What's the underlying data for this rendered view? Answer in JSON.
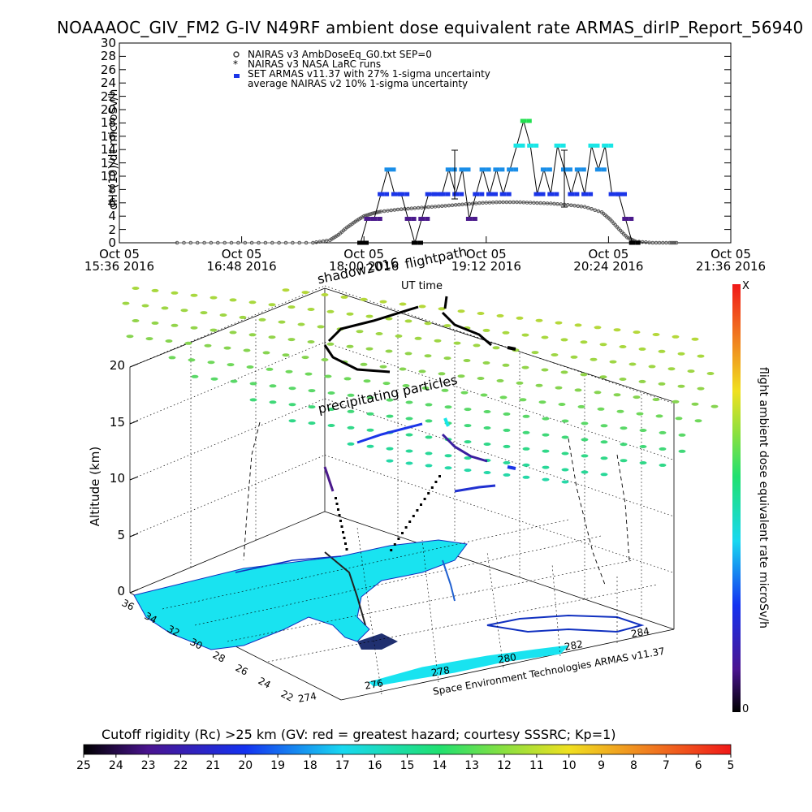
{
  "title": "NOAAAOC_GIV_FM2 G-IV   N49RF  ambient dose equivalent rate ARMAS_dirIP_Report_56940",
  "top_chart": {
    "ylabel": "dH*(10)/dt microSv/h",
    "xlabel": "UT time",
    "y_ticks": [
      "0",
      "2",
      "4",
      "6",
      "8",
      "10",
      "12",
      "14",
      "16",
      "18",
      "20",
      "22",
      "24",
      "26",
      "28",
      "30"
    ],
    "x_ticks": [
      {
        "date": "Oct 05",
        "time": "15:36 2016"
      },
      {
        "date": "Oct 05",
        "time": "16:48 2016"
      },
      {
        "date": "Oct 05",
        "time": "18:00 2016"
      },
      {
        "date": "Oct 05",
        "time": "19:12 2016"
      },
      {
        "date": "Oct 05",
        "time": "20:24 2016"
      },
      {
        "date": "Oct 05",
        "time": "21:36 2016"
      }
    ],
    "legend": [
      {
        "symbol": "⊛",
        "label": "NAIRAS v3 AmbDoseEq_G0.txt SEP=0"
      },
      {
        "symbol": "*",
        "label": "NAIRAS v3 NASA LaRC runs"
      },
      {
        "symbol": "■",
        "label": "SET ARMAS v11.37 with 27% 1-sigma uncertainty",
        "color": "#1b35e8"
      },
      {
        "symbol": "",
        "label": "average NAIRAS v2 10% 1-sigma uncertainty"
      }
    ]
  },
  "chart_data": [
    {
      "type": "scatter",
      "title": "NOAAAOC_GIV_FM2 G-IV   N49RF  ambient dose equivalent rate ARMAS_dirIP_Report_56940",
      "xlabel": "UT time",
      "ylabel": "dH*(10)/dt microSv/h",
      "xlim": [
        "15:36",
        "21:36"
      ],
      "ylim": [
        0,
        30
      ],
      "series": [
        {
          "name": "NAIRAS v3 AmbDoseEq_G0.txt SEP=0",
          "points": [
            [
              "16:10",
              0
            ],
            [
              "16:30",
              0
            ],
            [
              "16:50",
              0
            ],
            [
              "17:10",
              0
            ],
            [
              "17:30",
              0
            ],
            [
              "17:40",
              0.4
            ],
            [
              "17:45",
              1.2
            ],
            [
              "17:50",
              2.3
            ],
            [
              "17:55",
              3.2
            ],
            [
              "18:00",
              4.0
            ],
            [
              "18:05",
              4.4
            ],
            [
              "18:10",
              4.7
            ],
            [
              "18:20",
              5.0
            ],
            [
              "18:30",
              5.2
            ],
            [
              "18:40",
              5.4
            ],
            [
              "18:50",
              5.6
            ],
            [
              "19:00",
              5.8
            ],
            [
              "19:10",
              6.0
            ],
            [
              "19:20",
              6.1
            ],
            [
              "19:30",
              6.1
            ],
            [
              "19:40",
              6.0
            ],
            [
              "19:50",
              5.9
            ],
            [
              "20:00",
              5.7
            ],
            [
              "20:10",
              5.4
            ],
            [
              "20:20",
              4.6
            ],
            [
              "20:25",
              3.5
            ],
            [
              "20:30",
              2.1
            ],
            [
              "20:35",
              0.8
            ],
            [
              "20:40",
              0.2
            ],
            [
              "20:50",
              0
            ],
            [
              "21:00",
              0
            ],
            [
              "21:05",
              0
            ]
          ]
        },
        {
          "name": "SET ARMAS v11.37 with 27% 1-sigma uncertainty",
          "points": [
            [
              "17:58",
              0
            ],
            [
              "18:02",
              3.6
            ],
            [
              "18:06",
              3.6
            ],
            [
              "18:10",
              7.3
            ],
            [
              "18:14",
              11
            ],
            [
              "18:18",
              7.3
            ],
            [
              "18:22",
              7.3
            ],
            [
              "18:26",
              3.6
            ],
            [
              "18:30",
              0
            ],
            [
              "18:34",
              3.6
            ],
            [
              "18:38",
              7.3
            ],
            [
              "18:42",
              7.3
            ],
            [
              "18:46",
              7.3
            ],
            [
              "18:50",
              11
            ],
            [
              "18:54",
              7.3
            ],
            [
              "18:58",
              11
            ],
            [
              "19:02",
              3.6
            ],
            [
              "19:06",
              7.3
            ],
            [
              "19:10",
              11
            ],
            [
              "19:14",
              7.3
            ],
            [
              "19:18",
              11
            ],
            [
              "19:22",
              7.3
            ],
            [
              "19:26",
              11
            ],
            [
              "19:30",
              14.6
            ],
            [
              "19:34",
              18.3
            ],
            [
              "19:38",
              14.6
            ],
            [
              "19:42",
              7.3
            ],
            [
              "19:46",
              11
            ],
            [
              "19:50",
              7.3
            ],
            [
              "19:54",
              14.6
            ],
            [
              "19:58",
              11
            ],
            [
              "20:02",
              7.3
            ],
            [
              "20:06",
              11
            ],
            [
              "20:10",
              7.3
            ],
            [
              "20:14",
              14.6
            ],
            [
              "20:18",
              11
            ],
            [
              "20:22",
              14.6
            ],
            [
              "20:26",
              7.3
            ],
            [
              "20:30",
              7.3
            ],
            [
              "20:34",
              3.6
            ],
            [
              "20:38",
              0
            ]
          ]
        }
      ]
    },
    {
      "type": "scatter",
      "xlabel": "",
      "ylabel": "Altitude (km)",
      "zlim": [
        0,
        20
      ],
      "z_ticks": [
        "0",
        "5",
        "10",
        "15",
        "20"
      ],
      "lat_ticks": [
        "36",
        "34",
        "32",
        "30",
        "28",
        "26",
        "24",
        "22"
      ],
      "lon_ticks": [
        "274",
        "276",
        "278",
        "280",
        "282",
        "284"
      ],
      "annotations": [
        "shadow2016",
        "flightpath",
        "precipitating particles"
      ],
      "credit": "Space Environment Technologies ARMAS v11.37",
      "colorbar": {
        "label": "flight ambient dose equivalent rate microSv/h",
        "top_label": "X",
        "bottom_label": "0"
      }
    },
    {
      "type": "heatmap",
      "title": "Cutoff rigidity (Rc) >25 km (GV: red = greatest hazard; courtesy SSSRC; Kp=1)",
      "x_ticks": [
        "25",
        "24",
        "23",
        "22",
        "21",
        "20",
        "19",
        "18",
        "17",
        "16",
        "15",
        "14",
        "13",
        "12",
        "11",
        "10",
        "9",
        "8",
        "7",
        "6",
        "5"
      ]
    }
  ],
  "colors": {
    "armas_blue": "#1b35e8",
    "armas_cyan": "#18e6e6",
    "armas_green": "#21e050",
    "armas_purple": "#4b1a8c",
    "grid_green": "#8fd24a",
    "land_cyan": "#19e3f0"
  }
}
